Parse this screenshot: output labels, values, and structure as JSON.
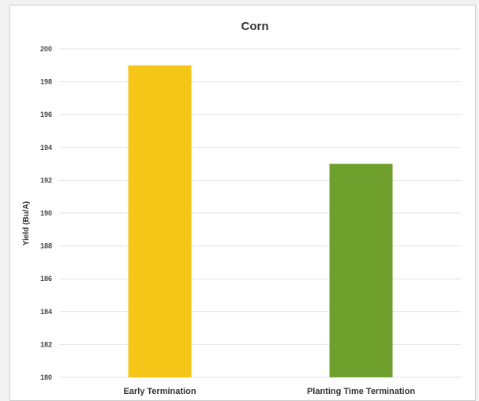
{
  "chart_data": {
    "type": "bar",
    "title": "Corn",
    "xlabel": "",
    "ylabel": "Yield (Bu/A)",
    "categories": [
      "Early Termination",
      "Planting Time Termination"
    ],
    "values": [
      199,
      193
    ],
    "colors": [
      "#f5c518",
      "#6fa02d"
    ],
    "ylim": [
      180,
      200
    ],
    "yticks": [
      180,
      182,
      184,
      186,
      188,
      190,
      192,
      194,
      196,
      198,
      200
    ],
    "ytick_labels": [
      "180",
      "182",
      "184",
      "186",
      "188",
      "190",
      "192",
      "194",
      "196",
      "198",
      "200"
    ],
    "grid": true,
    "legend": "none"
  }
}
